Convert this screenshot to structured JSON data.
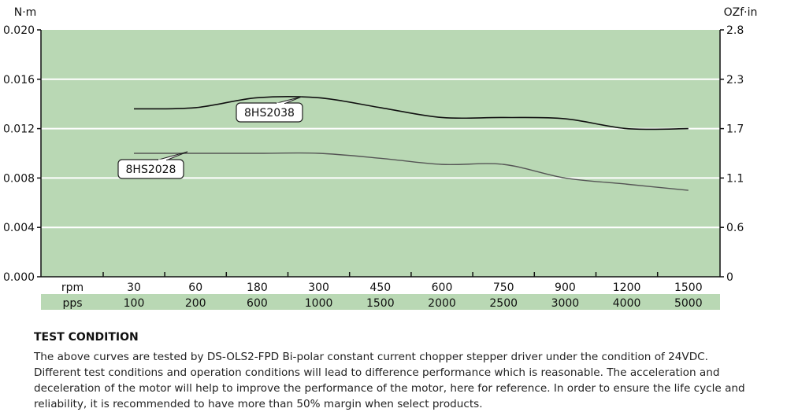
{
  "chart_data": {
    "type": "line",
    "left_unit": "N·m",
    "right_unit": "OZf·in",
    "left_ticks": [
      "0.020",
      "0.016",
      "0.012",
      "0.008",
      "0.004",
      "0.000"
    ],
    "right_ticks": [
      "2.8",
      "2.3",
      "1.7",
      "1.1",
      "0.6",
      "0"
    ],
    "ylim": [
      0,
      0.02
    ],
    "row1_label": "rpm",
    "row2_label": "pps",
    "rpm": [
      "30",
      "60",
      "180",
      "300",
      "450",
      "600",
      "750",
      "900",
      "1200",
      "1500"
    ],
    "pps": [
      "100",
      "200",
      "600",
      "1000",
      "1500",
      "2000",
      "2500",
      "3000",
      "4000",
      "5000"
    ],
    "series": [
      {
        "name": "8HS2038",
        "color": "#111111",
        "values": [
          0.0136,
          0.0137,
          0.0145,
          0.0145,
          0.0137,
          0.0129,
          0.0129,
          0.0128,
          0.012,
          0.012
        ]
      },
      {
        "name": "8HS2028",
        "color": "#555555",
        "values": [
          0.01,
          0.01,
          0.01,
          0.01,
          0.0096,
          0.0091,
          0.0091,
          0.008,
          0.0075,
          0.007
        ]
      }
    ],
    "grid": true,
    "background_color": "#b9d8b4",
    "pps_band_color": "#b9d8b4"
  },
  "test_condition": {
    "title": "TEST CONDITION",
    "body": "The above curves are tested by DS-OLS2-FPD Bi-polar constant current chopper stepper driver under the condition of 24VDC. Different test conditions and operation conditions will lead to difference performance which is reasonable. The acceleration and deceleration of the motor will help to improve the performance of the motor, here for reference. In order to ensure the life cycle and reliability, it is recommended to have more than 50% margin when select products."
  }
}
